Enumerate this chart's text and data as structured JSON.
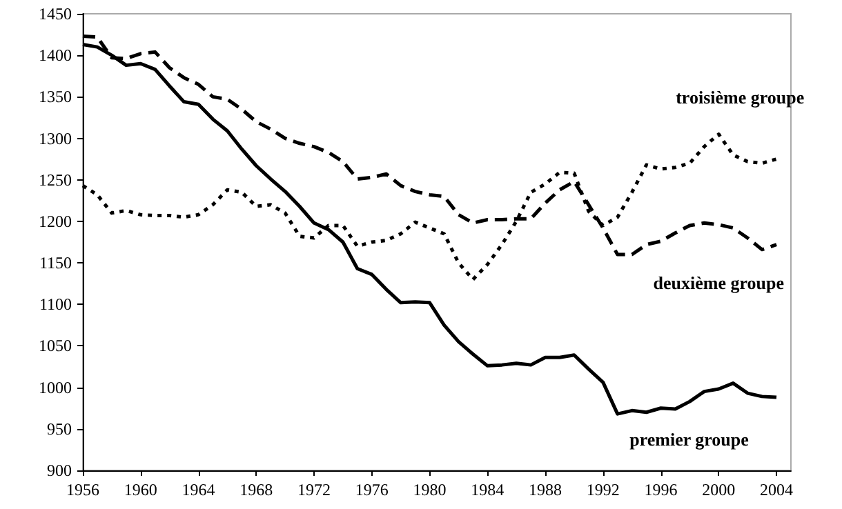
{
  "chart_data": {
    "type": "line",
    "x": [
      1956,
      1957,
      1958,
      1959,
      1960,
      1961,
      1962,
      1963,
      1964,
      1965,
      1966,
      1967,
      1968,
      1969,
      1970,
      1971,
      1972,
      1973,
      1974,
      1975,
      1976,
      1977,
      1978,
      1979,
      1980,
      1981,
      1982,
      1983,
      1984,
      1985,
      1986,
      1987,
      1988,
      1989,
      1990,
      1991,
      1992,
      1993,
      1994,
      1995,
      1996,
      1997,
      1998,
      1999,
      2000,
      2001,
      2002,
      2003,
      2004
    ],
    "series": [
      {
        "name": "premier groupe",
        "color": "#000000",
        "line_style": "solid",
        "values": [
          1413,
          1410,
          1400,
          1388,
          1390,
          1383,
          1363,
          1344,
          1341,
          1323,
          1309,
          1287,
          1267,
          1251,
          1236,
          1218,
          1198,
          1190,
          1175,
          1143,
          1136,
          1118,
          1102,
          1103,
          1102,
          1075,
          1055,
          1040,
          1026,
          1027,
          1029,
          1027,
          1036,
          1036,
          1039,
          1022,
          1006,
          968,
          972,
          970,
          975,
          974,
          983,
          995,
          998,
          1005,
          993,
          989,
          988
        ]
      },
      {
        "name": "deuxième groupe",
        "color": "#000000",
        "line_style": "dashed",
        "values": [
          1423,
          1422,
          1397,
          1396,
          1402,
          1404,
          1385,
          1373,
          1365,
          1350,
          1347,
          1335,
          1320,
          1311,
          1300,
          1294,
          1290,
          1283,
          1272,
          1251,
          1253,
          1257,
          1243,
          1236,
          1232,
          1230,
          1208,
          1198,
          1202,
          1202,
          1203,
          1203,
          1222,
          1238,
          1248,
          1220,
          1192,
          1160,
          1160,
          1172,
          1176,
          1186,
          1195,
          1198,
          1196,
          1192,
          1180,
          1166,
          1172
        ]
      },
      {
        "name": "troisième groupe",
        "color": "#000000",
        "line_style": "dotted",
        "values": [
          1243,
          1232,
          1210,
          1213,
          1208,
          1207,
          1207,
          1205,
          1208,
          1220,
          1238,
          1235,
          1218,
          1220,
          1210,
          1182,
          1180,
          1195,
          1195,
          1170,
          1175,
          1177,
          1185,
          1199,
          1192,
          1185,
          1150,
          1130,
          1148,
          1172,
          1200,
          1235,
          1245,
          1259,
          1258,
          1212,
          1195,
          1205,
          1235,
          1268,
          1263,
          1265,
          1270,
          1290,
          1305,
          1280,
          1272,
          1270,
          1275
        ]
      }
    ],
    "xlim": [
      1956,
      2005
    ],
    "xticks": [
      1956,
      1960,
      1964,
      1968,
      1972,
      1976,
      1980,
      1984,
      1988,
      1992,
      1996,
      2000,
      2004
    ],
    "ylim": [
      900,
      1450
    ],
    "yticks": [
      900,
      950,
      1000,
      1050,
      1100,
      1150,
      1200,
      1250,
      1300,
      1350,
      1400,
      1450
    ],
    "grid": false,
    "legend": false,
    "marker": "none"
  }
}
